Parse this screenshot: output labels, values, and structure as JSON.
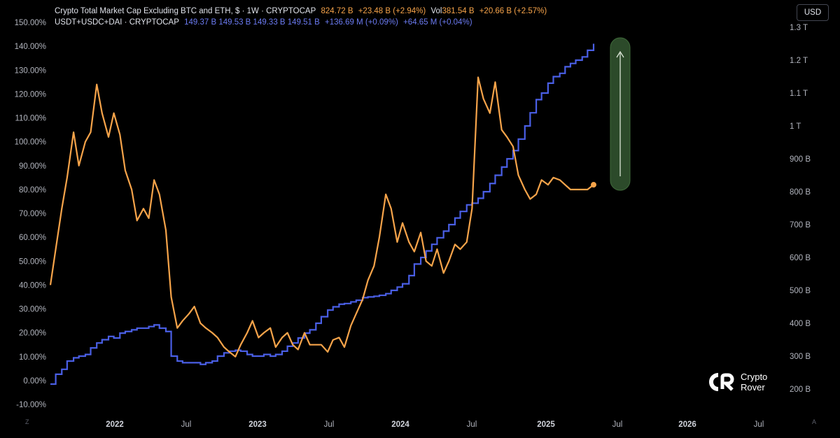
{
  "legend": {
    "series1": {
      "title": "Crypto Total Market Cap Excluding BTC and ETH, $ · 1W · CRYPTOCAP",
      "value": "824.72 B",
      "change": "+23.48 B (+2.94%)",
      "vol_label": "Vol",
      "vol_value": "381.54 B",
      "vol_change": "+20.66 B (+2.57%)"
    },
    "series2": {
      "title": "USDT+USDC+DAI · CRYPTOCAP",
      "values": "149.37 B  149.53 B  149.33 B  149.51 B",
      "change": "+136.69 M (+0.09%)",
      "change2": "+64.65 M (+0.04%)"
    }
  },
  "currency_button": "USD",
  "corner_left": "Z",
  "corner_right": "A",
  "logo": {
    "line1": "Crypto",
    "line2": "Rover"
  },
  "colors": {
    "background": "#000000",
    "orange": "#f7a44a",
    "blue": "#4a5fe6",
    "arrow_fill": "#2c4a2a",
    "arrow_border": "#3f6a3a"
  },
  "chart_data": {
    "type": "line",
    "x_ticks": [
      "2022",
      "Jul",
      "2023",
      "Jul",
      "2024",
      "Jul",
      "2025",
      "Jul",
      "2026",
      "Jul"
    ],
    "x_tick_dates": [
      "2022-01",
      "2022-07",
      "2023-01",
      "2023-07",
      "2024-01",
      "2024-07",
      "2025-01",
      "2025-07",
      "2026-01",
      "2026-07"
    ],
    "left_axis": {
      "ticks": [
        "150.00%",
        "140.00%",
        "130.00%",
        "120.00%",
        "110.00%",
        "100.00%",
        "90.00%",
        "80.00%",
        "70.00%",
        "60.00%",
        "50.00%",
        "40.00%",
        "30.00%",
        "20.00%",
        "10.00%",
        "0.00%",
        "-10.00%"
      ],
      "ylim": [
        -10,
        150
      ]
    },
    "right_axis": {
      "ticks": [
        "1.3 T",
        "1.2 T",
        "1.1 T",
        "1 T",
        "900 B",
        "800 B",
        "700 B",
        "600 B",
        "500 B",
        "400 B",
        "300 B",
        "200 B"
      ],
      "ylim_billions": [
        200,
        1300
      ]
    },
    "series": [
      {
        "name": "Crypto Total Market Cap Excluding BTC and ETH",
        "color": "#f7a44a",
        "axis": "left",
        "x": [
          "2021-06",
          "2021-06-15",
          "2021-07",
          "2021-07-15",
          "2021-08",
          "2021-08-15",
          "2021-09",
          "2021-09-15",
          "2021-10",
          "2021-10-15",
          "2021-11",
          "2021-11-15",
          "2021-12",
          "2021-12-15",
          "2022-01",
          "2022-01-15",
          "2022-02",
          "2022-02-15",
          "2022-03",
          "2022-03-15",
          "2022-04",
          "2022-04-15",
          "2022-05",
          "2022-05-15",
          "2022-06",
          "2022-06-15",
          "2022-07",
          "2022-07-15",
          "2022-08",
          "2022-08-15",
          "2022-09",
          "2022-09-15",
          "2022-10",
          "2022-10-15",
          "2022-11",
          "2022-11-15",
          "2022-12",
          "2022-12-15",
          "2023-01",
          "2023-01-15",
          "2023-02",
          "2023-02-15",
          "2023-03",
          "2023-03-15",
          "2023-04",
          "2023-04-15",
          "2023-05",
          "2023-05-15",
          "2023-06",
          "2023-06-15",
          "2023-07",
          "2023-07-15",
          "2023-08",
          "2023-08-15",
          "2023-09",
          "2023-09-15",
          "2023-10",
          "2023-10-15",
          "2023-11",
          "2023-11-15",
          "2023-12",
          "2023-12-15",
          "2024-01",
          "2024-01-15",
          "2024-02",
          "2024-02-15",
          "2024-03",
          "2024-03-15",
          "2024-04",
          "2024-04-15",
          "2024-05",
          "2024-05-15",
          "2024-06",
          "2024-06-15",
          "2024-07",
          "2024-07-15",
          "2024-08",
          "2024-08-15",
          "2024-09",
          "2024-09-15",
          "2024-10",
          "2024-10-15",
          "2024-11",
          "2024-11-15",
          "2024-12",
          "2024-12-15",
          "2025-01",
          "2025-01-15",
          "2025-02",
          "2025-02-15",
          "2025-03",
          "2025-03-15",
          "2025-04",
          "2025-04-15",
          "2025-05"
        ],
        "values": [
          40,
          55,
          72,
          85,
          104,
          90,
          100,
          104,
          124,
          112,
          102,
          112,
          103,
          88,
          80,
          67,
          72,
          68,
          84,
          78,
          63,
          35,
          22,
          25,
          28,
          31,
          24,
          22,
          20,
          18,
          14,
          12,
          10,
          15,
          20,
          25,
          18,
          20,
          22,
          14,
          18,
          20,
          15,
          13,
          20,
          15,
          15,
          15,
          12,
          17,
          18,
          14,
          23,
          28,
          34,
          42,
          48,
          60,
          78,
          72,
          58,
          66,
          58,
          54,
          62,
          50,
          48,
          55,
          45,
          50,
          57,
          55,
          58,
          72,
          127,
          118,
          112,
          125,
          105,
          102,
          98,
          86,
          80,
          76,
          78,
          84,
          82,
          85,
          84,
          82,
          80,
          80,
          80,
          80,
          82
        ],
        "last": 82
      },
      {
        "name": "USDT+USDC+DAI",
        "color": "#4a5fe6",
        "axis": "right",
        "x": [
          "2021-06",
          "2021-06-15",
          "2021-07",
          "2021-07-15",
          "2021-08",
          "2021-08-15",
          "2021-09",
          "2021-09-15",
          "2021-10",
          "2021-10-15",
          "2021-11",
          "2021-11-15",
          "2021-12",
          "2021-12-15",
          "2022-01",
          "2022-01-15",
          "2022-02",
          "2022-02-15",
          "2022-03",
          "2022-03-15",
          "2022-04",
          "2022-04-15",
          "2022-05",
          "2022-05-15",
          "2022-06",
          "2022-06-15",
          "2022-07",
          "2022-07-15",
          "2022-08",
          "2022-08-15",
          "2022-09",
          "2022-09-15",
          "2022-10",
          "2022-10-15",
          "2022-11",
          "2022-11-15",
          "2022-12",
          "2022-12-15",
          "2023-01",
          "2023-01-15",
          "2023-02",
          "2023-02-15",
          "2023-03",
          "2023-03-15",
          "2023-04",
          "2023-04-15",
          "2023-05",
          "2023-05-15",
          "2023-06",
          "2023-06-15",
          "2023-07",
          "2023-07-15",
          "2023-08",
          "2023-08-15",
          "2023-09",
          "2023-09-15",
          "2023-10",
          "2023-10-15",
          "2023-11",
          "2023-11-15",
          "2023-12",
          "2023-12-15",
          "2024-01",
          "2024-01-15",
          "2024-02",
          "2024-02-15",
          "2024-03",
          "2024-03-15",
          "2024-04",
          "2024-04-15",
          "2024-05",
          "2024-05-15",
          "2024-06",
          "2024-06-15",
          "2024-07",
          "2024-07-15",
          "2024-08",
          "2024-08-15",
          "2024-09",
          "2024-09-15",
          "2024-10",
          "2024-10-15",
          "2024-11",
          "2024-11-15",
          "2024-12",
          "2024-12-15",
          "2025-01",
          "2025-01-15",
          "2025-02",
          "2025-02-15",
          "2025-03",
          "2025-03-15",
          "2025-04",
          "2025-04-15",
          "2025-05"
        ],
        "values": [
          215,
          245,
          260,
          285,
          295,
          300,
          305,
          325,
          340,
          350,
          360,
          355,
          370,
          375,
          380,
          385,
          385,
          390,
          395,
          385,
          375,
          300,
          285,
          280,
          280,
          280,
          275,
          280,
          285,
          300,
          310,
          315,
          318,
          315,
          305,
          300,
          300,
          305,
          300,
          305,
          315,
          330,
          340,
          355,
          370,
          380,
          400,
          420,
          440,
          450,
          458,
          460,
          465,
          470,
          478,
          480,
          482,
          485,
          490,
          500,
          510,
          520,
          545,
          580,
          600,
          620,
          640,
          660,
          680,
          700,
          720,
          740,
          760,
          765,
          780,
          800,
          825,
          850,
          875,
          900,
          925,
          960,
          1000,
          1040,
          1080,
          1100,
          1130,
          1150,
          1160,
          1180,
          1190,
          1200,
          1210,
          1230,
          1250
        ],
        "last": 1250
      }
    ]
  }
}
